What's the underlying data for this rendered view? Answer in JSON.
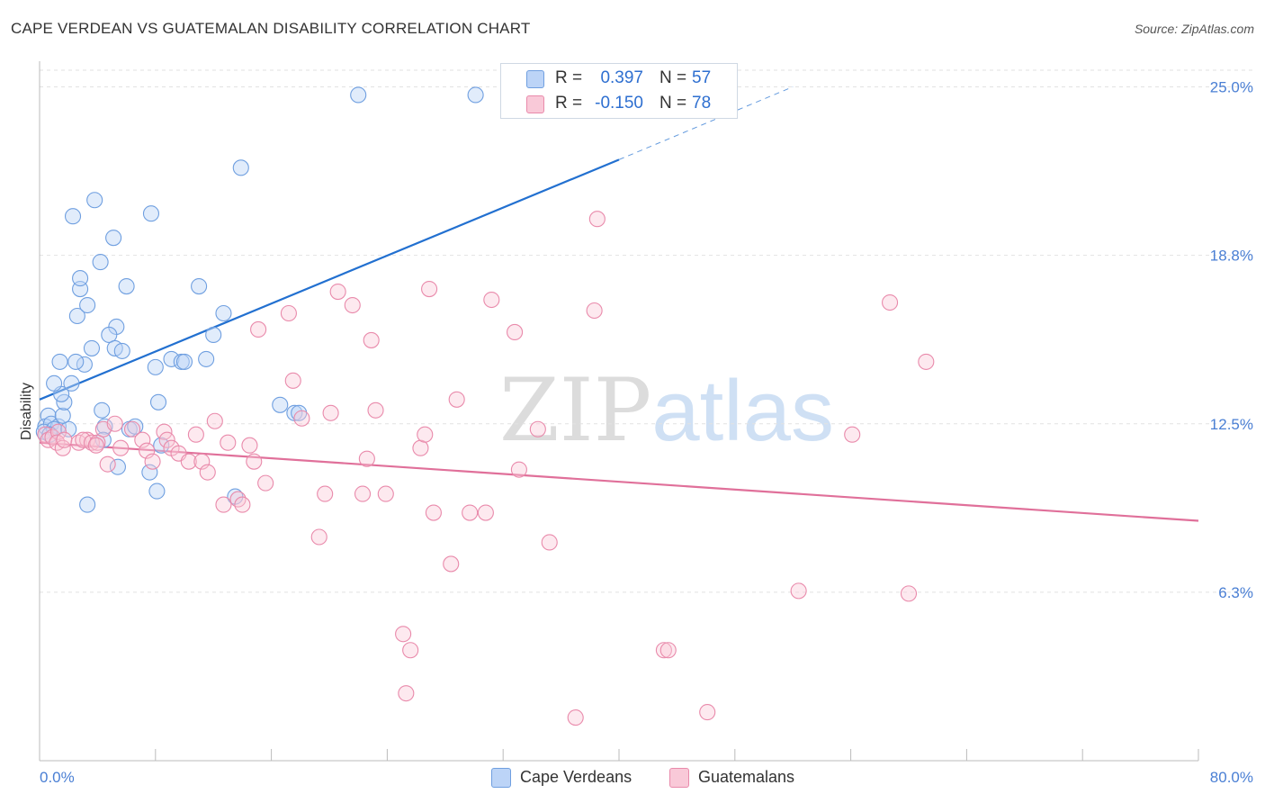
{
  "title": "CAPE VERDEAN VS GUATEMALAN DISABILITY CORRELATION CHART",
  "source": "Source: ZipAtlas.com",
  "watermark": {
    "zip": "ZIP",
    "atlas": "atlas"
  },
  "legend": {
    "rows": [
      {
        "r_label": "R =",
        "r_value": "0.397",
        "n_label": "N =",
        "n_value": "57",
        "fill": "#bcd4f7",
        "stroke": "#6f9fe0"
      },
      {
        "r_label": "R =",
        "r_value": "-0.150",
        "n_label": "N =",
        "n_value": "78",
        "fill": "#f9c9d8",
        "stroke": "#e98aab"
      }
    ]
  },
  "bottom_legend": [
    {
      "label": "Cape Verdeans",
      "fill": "#bcd4f7",
      "stroke": "#6f9fe0"
    },
    {
      "label": "Guatemalans",
      "fill": "#f9c9d8",
      "stroke": "#e98aab"
    }
  ],
  "chart_data": {
    "type": "scatter",
    "title": "CAPE VERDEAN VS GUATEMALAN DISABILITY CORRELATION CHART",
    "xlabel": "",
    "ylabel": "Disability",
    "xlim": [
      0,
      80
    ],
    "ylim": [
      0,
      25
    ],
    "x_tick_labels": [
      "0.0%",
      "80.0%"
    ],
    "y_ticks": [
      6.25,
      12.5,
      18.75,
      25
    ],
    "y_tick_labels": [
      "6.3%",
      "12.5%",
      "18.8%",
      "25.0%"
    ],
    "grid": "horizontal dashed",
    "legend_position": "top-center",
    "colors": {
      "cape_verdeans": "#5b93e0",
      "guatemalans": "#e97aa0",
      "cape_line": "#2270d0",
      "guat_line": "#e0709a"
    },
    "series": [
      {
        "name": "Cape Verdeans",
        "points": [
          [
            0.6,
            12.8
          ],
          [
            0.4,
            12.4
          ],
          [
            0.8,
            12.5
          ],
          [
            1.3,
            12.4
          ],
          [
            0.3,
            12.2
          ],
          [
            1.0,
            12.3
          ],
          [
            2.0,
            12.3
          ],
          [
            1.6,
            12.8
          ],
          [
            1.7,
            13.3
          ],
          [
            1.5,
            13.6
          ],
          [
            1.0,
            14.0
          ],
          [
            2.2,
            14.0
          ],
          [
            1.4,
            14.8
          ],
          [
            3.1,
            14.7
          ],
          [
            2.5,
            14.8
          ],
          [
            2.6,
            16.5
          ],
          [
            3.3,
            16.9
          ],
          [
            2.8,
            17.5
          ],
          [
            2.8,
            17.9
          ],
          [
            4.2,
            18.5
          ],
          [
            3.8,
            20.8
          ],
          [
            2.3,
            20.2
          ],
          [
            5.1,
            19.4
          ],
          [
            6.0,
            17.6
          ],
          [
            5.3,
            16.1
          ],
          [
            4.8,
            15.8
          ],
          [
            5.2,
            15.3
          ],
          [
            5.7,
            15.2
          ],
          [
            3.6,
            15.3
          ],
          [
            4.3,
            13.0
          ],
          [
            4.5,
            12.4
          ],
          [
            4.4,
            11.9
          ],
          [
            6.2,
            12.3
          ],
          [
            6.6,
            12.4
          ],
          [
            3.3,
            9.5
          ],
          [
            5.4,
            10.9
          ],
          [
            7.6,
            10.7
          ],
          [
            8.4,
            11.7
          ],
          [
            8.2,
            13.3
          ],
          [
            8.0,
            14.6
          ],
          [
            9.1,
            14.9
          ],
          [
            9.8,
            14.8
          ],
          [
            10.0,
            14.8
          ],
          [
            11.5,
            14.9
          ],
          [
            11.0,
            17.6
          ],
          [
            12.7,
            16.6
          ],
          [
            12.0,
            15.8
          ],
          [
            8.1,
            10.0
          ],
          [
            13.5,
            9.8
          ],
          [
            16.6,
            13.2
          ],
          [
            17.6,
            12.9
          ],
          [
            17.9,
            12.9
          ],
          [
            7.7,
            20.3
          ],
          [
            13.9,
            22.0
          ],
          [
            22.0,
            24.7
          ],
          [
            30.1,
            24.7
          ],
          [
            0.7,
            12.1
          ]
        ]
      },
      {
        "name": "Guatemalans",
        "points": [
          [
            0.4,
            12.1
          ],
          [
            0.6,
            11.9
          ],
          [
            0.9,
            12.0
          ],
          [
            1.3,
            12.2
          ],
          [
            1.2,
            11.8
          ],
          [
            1.6,
            11.6
          ],
          [
            1.7,
            11.9
          ],
          [
            2.7,
            11.8
          ],
          [
            3.3,
            11.9
          ],
          [
            3.0,
            11.9
          ],
          [
            3.6,
            11.8
          ],
          [
            4.0,
            11.8
          ],
          [
            3.9,
            11.7
          ],
          [
            4.4,
            12.3
          ],
          [
            4.7,
            11.0
          ],
          [
            5.2,
            12.5
          ],
          [
            5.6,
            11.6
          ],
          [
            6.4,
            12.3
          ],
          [
            7.1,
            11.9
          ],
          [
            7.4,
            11.5
          ],
          [
            7.8,
            11.1
          ],
          [
            8.6,
            12.2
          ],
          [
            8.8,
            11.9
          ],
          [
            9.1,
            11.6
          ],
          [
            9.6,
            11.4
          ],
          [
            10.3,
            11.1
          ],
          [
            10.8,
            12.1
          ],
          [
            11.2,
            11.1
          ],
          [
            11.6,
            10.7
          ],
          [
            12.1,
            12.6
          ],
          [
            13.0,
            11.8
          ],
          [
            14.5,
            11.7
          ],
          [
            14.8,
            11.1
          ],
          [
            15.6,
            10.3
          ],
          [
            12.7,
            9.5
          ],
          [
            13.7,
            9.7
          ],
          [
            14.0,
            9.5
          ],
          [
            15.1,
            16.0
          ],
          [
            17.2,
            16.6
          ],
          [
            17.5,
            14.1
          ],
          [
            18.1,
            12.7
          ],
          [
            19.3,
            8.3
          ],
          [
            19.7,
            9.9
          ],
          [
            20.1,
            12.9
          ],
          [
            20.6,
            17.4
          ],
          [
            21.6,
            16.9
          ],
          [
            22.3,
            9.9
          ],
          [
            22.6,
            11.2
          ],
          [
            22.9,
            15.6
          ],
          [
            23.2,
            13.0
          ],
          [
            23.9,
            9.9
          ],
          [
            25.1,
            4.7
          ],
          [
            25.3,
            2.5
          ],
          [
            25.6,
            4.1
          ],
          [
            26.3,
            11.6
          ],
          [
            26.6,
            12.1
          ],
          [
            26.9,
            17.5
          ],
          [
            27.2,
            9.2
          ],
          [
            28.4,
            7.3
          ],
          [
            28.8,
            13.4
          ],
          [
            29.7,
            9.2
          ],
          [
            30.8,
            9.2
          ],
          [
            31.2,
            17.1
          ],
          [
            32.8,
            15.9
          ],
          [
            33.1,
            10.8
          ],
          [
            34.4,
            12.3
          ],
          [
            35.2,
            8.1
          ],
          [
            37.0,
            1.6
          ],
          [
            38.3,
            16.7
          ],
          [
            38.5,
            20.1
          ],
          [
            43.1,
            4.1
          ],
          [
            43.4,
            4.1
          ],
          [
            46.1,
            1.8
          ],
          [
            52.4,
            6.3
          ],
          [
            56.1,
            12.1
          ],
          [
            58.7,
            17.0
          ],
          [
            60.0,
            6.2
          ],
          [
            61.2,
            14.8
          ]
        ]
      }
    ],
    "trend_lines": [
      {
        "series": "Cape Verdeans",
        "x_solid": [
          0,
          40
        ],
        "y_solid": [
          13.4,
          22.3
        ],
        "x_dashed": [
          40,
          52
        ],
        "y_dashed": [
          22.3,
          25.0
        ]
      },
      {
        "series": "Guatemalans",
        "x": [
          0,
          80
        ],
        "y": [
          11.8,
          8.9
        ]
      }
    ]
  }
}
